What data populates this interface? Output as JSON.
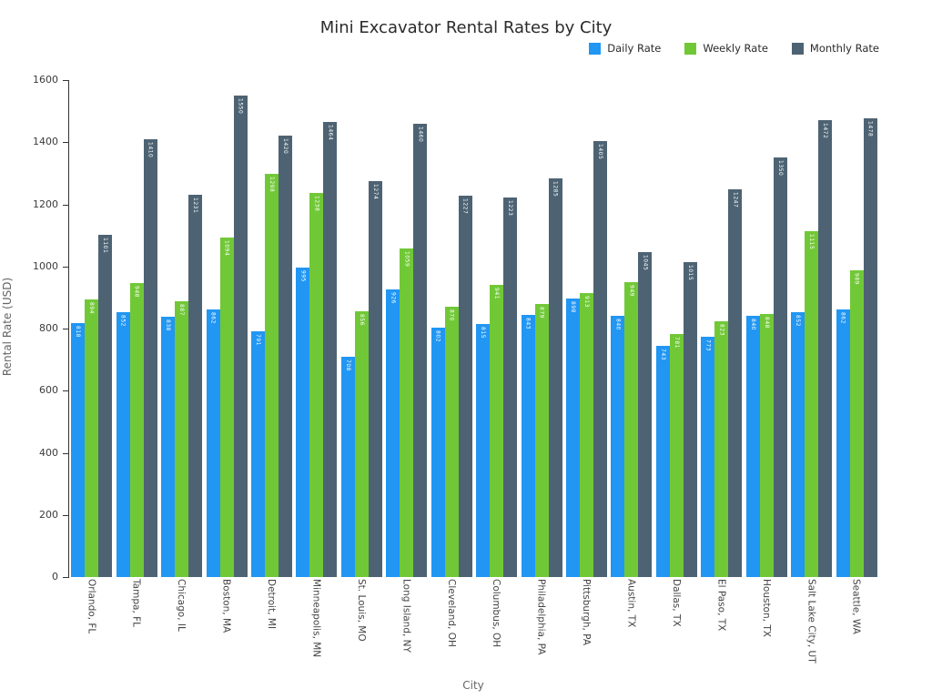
{
  "chart_data": {
    "type": "bar",
    "title": "Mini Excavator Rental Rates by City",
    "xlabel": "City",
    "ylabel": "Rental Rate (USD)",
    "ylim": [
      0,
      1600
    ],
    "yticks": [
      0,
      200,
      400,
      600,
      800,
      1000,
      1200,
      1400,
      1600
    ],
    "grid": false,
    "legend_position": "top-right",
    "bar_value_labels": true,
    "categories": [
      "Orlando, FL",
      "Tampa, FL",
      "Chicago, IL",
      "Boston, MA",
      "Detroit, MI",
      "Minneapolis, MN",
      "St. Louis, MO",
      "Long Island, NY",
      "Cleveland, OH",
      "Columbus, OH",
      "Philadelphia, PA",
      "Pittsburgh, PA",
      "Austin, TX",
      "Dallas, TX",
      "El Paso, TX",
      "Houston, TX",
      "Salt Lake City, UT",
      "Seattle, WA"
    ],
    "series": [
      {
        "name": "Daily Rate",
        "color": "#2196F3",
        "values": [
          818,
          852,
          838,
          862,
          791,
          995,
          708,
          926,
          802,
          815,
          843,
          898,
          840,
          743,
          773,
          840,
          852,
          862
        ]
      },
      {
        "name": "Weekly Rate",
        "color": "#71C837",
        "values": [
          894,
          948,
          887,
          1094,
          1298,
          1238,
          856,
          1059,
          870,
          941,
          879,
          913,
          949,
          781,
          823,
          848,
          1115,
          989
        ]
      },
      {
        "name": "Monthly Rate",
        "color": "#4D6373",
        "values": [
          1101,
          1410,
          1231,
          1550,
          1420,
          1464,
          1274,
          1460,
          1227,
          1223,
          1285,
          1405,
          1045,
          1015,
          1247,
          1350,
          1472,
          1478
        ]
      }
    ]
  }
}
